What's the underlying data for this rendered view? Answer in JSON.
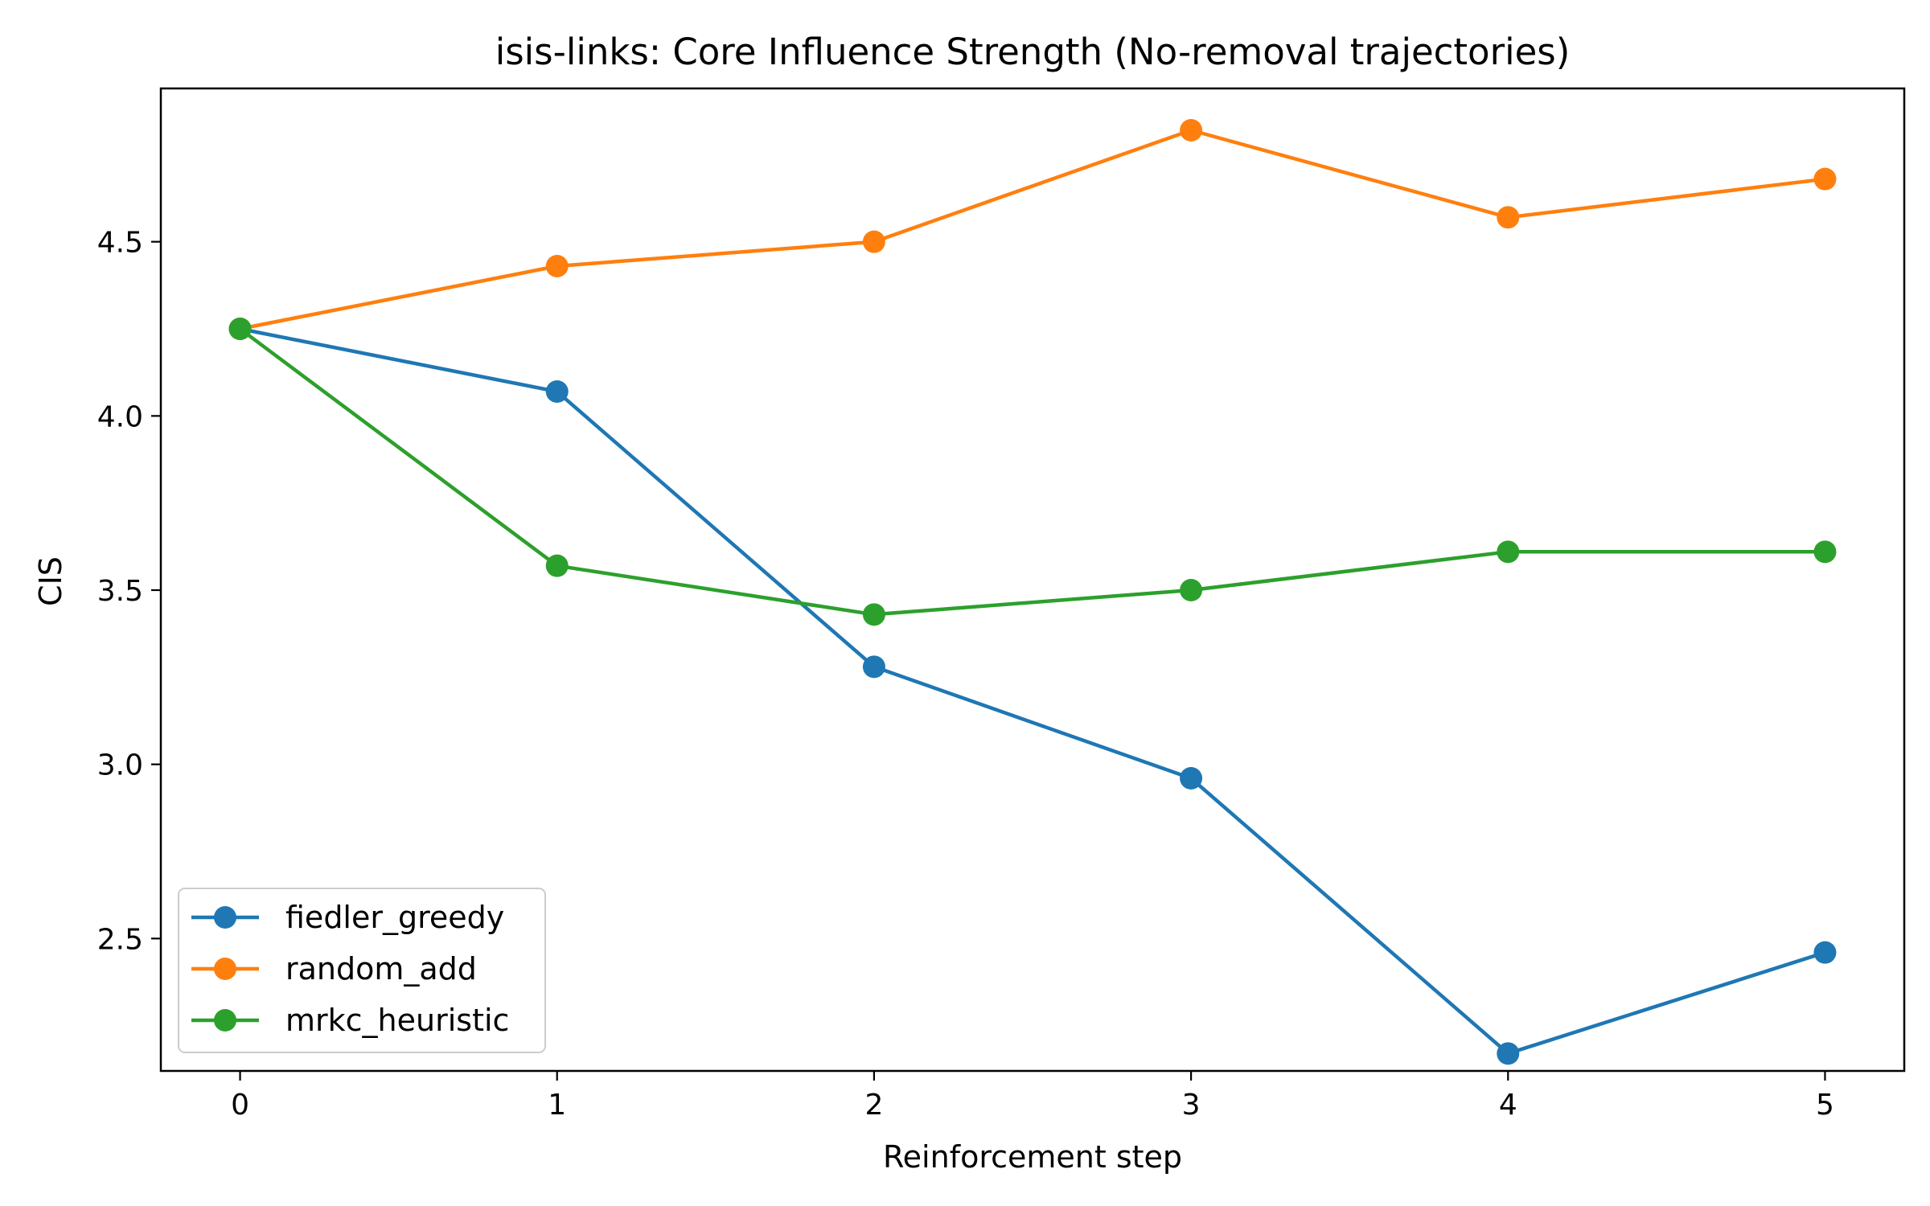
{
  "chart_data": {
    "type": "line",
    "title": "isis-links: Core Influence Strength (No-removal trajectories)",
    "xlabel": "Reinforcement step",
    "ylabel": "CIS",
    "x": [
      0,
      1,
      2,
      3,
      4,
      5
    ],
    "xticks": [
      0,
      1,
      2,
      3,
      4,
      5
    ],
    "yticks": [
      2.5,
      3.0,
      3.5,
      4.0,
      4.5
    ],
    "xlim": [
      -0.25,
      5.25
    ],
    "ylim": [
      2.12,
      4.94
    ],
    "grid": false,
    "legend_position": "lower-left",
    "series": [
      {
        "name": "fiedler_greedy",
        "color": "#1f77b4",
        "values": [
          4.25,
          4.07,
          3.28,
          2.96,
          2.17,
          2.46
        ]
      },
      {
        "name": "random_add",
        "color": "#ff7f0e",
        "values": [
          4.25,
          4.43,
          4.5,
          4.82,
          4.57,
          4.68
        ]
      },
      {
        "name": "mrkc_heuristic",
        "color": "#2ca02c",
        "values": [
          4.25,
          3.57,
          3.43,
          3.5,
          3.61,
          3.61
        ]
      }
    ]
  }
}
